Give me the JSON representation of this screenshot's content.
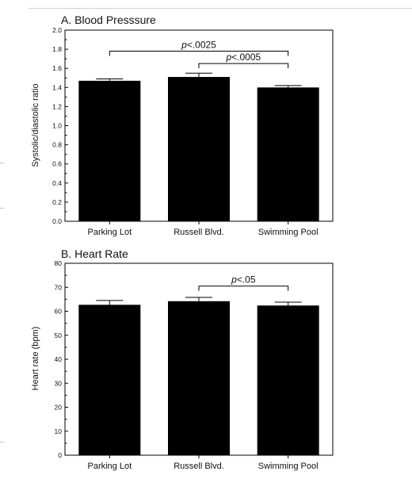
{
  "chart_data": [
    {
      "type": "bar",
      "title": "A. Blood Presssure",
      "ylabel": "Systolic/diastolic ratio",
      "xlabel": "",
      "ylim": [
        0,
        2.0
      ],
      "yticks": [
        0.0,
        0.2,
        0.4,
        0.6,
        0.8,
        1.0,
        1.2,
        1.4,
        1.6,
        1.8,
        2.0
      ],
      "ytick_labels": [
        "0.0",
        "0.2",
        "0.4",
        "0.6",
        "0.8",
        "1.0",
        "1.2",
        "1.4",
        "1.6",
        "1.8",
        "2.0"
      ],
      "categories": [
        "Parking Lot",
        "Russell Blvd.",
        "Swimming Pool"
      ],
      "values": [
        1.47,
        1.51,
        1.4
      ],
      "errors": [
        0.02,
        0.04,
        0.02
      ],
      "bar_color": "#000000",
      "annotations": [
        {
          "italic": "p",
          "rest": "<.0025",
          "from": 0,
          "to": 2,
          "y": 1.78
        },
        {
          "italic": "p",
          "rest": "<.0005",
          "from": 1,
          "to": 2,
          "y": 1.65
        }
      ]
    },
    {
      "type": "bar",
      "title": "B. Heart Rate",
      "ylabel": "Heart rate (bpm)",
      "xlabel": "",
      "ylim": [
        0,
        80
      ],
      "yticks": [
        0,
        10,
        20,
        30,
        40,
        50,
        60,
        70,
        80
      ],
      "ytick_labels": [
        "0",
        "10",
        "20",
        "30",
        "40",
        "50",
        "60",
        "70",
        "80"
      ],
      "categories": [
        "Parking Lot",
        "Russell Blvd.",
        "Swimming Pool"
      ],
      "values": [
        62.7,
        64.2,
        62.4
      ],
      "errors": [
        1.8,
        1.6,
        1.4
      ],
      "bar_color": "#000000",
      "annotations": [
        {
          "italic": "p",
          "rest": "<.05",
          "from": 1,
          "to": 2,
          "y": 70.5
        }
      ]
    }
  ]
}
